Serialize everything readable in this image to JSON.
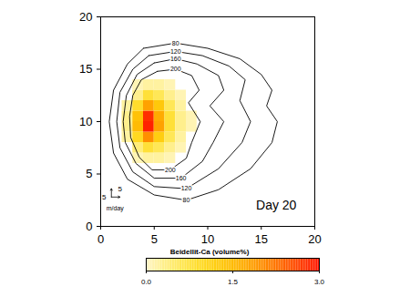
{
  "chart_data": {
    "type": "contour",
    "xlim": [
      0,
      20
    ],
    "ylim": [
      0,
      20
    ],
    "xticks": [
      0,
      5,
      10,
      15,
      20
    ],
    "yticks": [
      0,
      5,
      10,
      15,
      20
    ],
    "annotation": "Day 20",
    "scale_arrow": {
      "value": 5,
      "unit": "m/day"
    },
    "colorbar": {
      "title": "Beidellit-Ca (volume%)",
      "range": [
        0,
        3
      ],
      "ticks": [
        0,
        1.5,
        3
      ],
      "colors": [
        "#fff6c8",
        "#ffe000",
        "#ff9a00",
        "#ff1400"
      ]
    },
    "concentration": {
      "x_edges": [
        2,
        3,
        4,
        5,
        6,
        7,
        8,
        9
      ],
      "y_edges": [
        6,
        7,
        8,
        9,
        10,
        11,
        12,
        13,
        14
      ],
      "values": [
        [
          0,
          0.1,
          0.2,
          0.2,
          0.1,
          0,
          0
        ],
        [
          0,
          0.4,
          0.8,
          0.6,
          0.3,
          0.1,
          0
        ],
        [
          0.2,
          1.0,
          2.0,
          1.2,
          0.6,
          0.2,
          0
        ],
        [
          0.3,
          1.5,
          2.9,
          1.8,
          0.8,
          0.3,
          0.1
        ],
        [
          0.3,
          1.4,
          2.8,
          1.7,
          0.8,
          0.3,
          0.1
        ],
        [
          0.2,
          0.9,
          1.8,
          1.3,
          0.6,
          0.2,
          0
        ],
        [
          0,
          0.3,
          0.8,
          0.6,
          0.3,
          0.1,
          0
        ],
        [
          0,
          0.1,
          0.2,
          0.2,
          0.1,
          0,
          0
        ]
      ]
    },
    "contours": [
      {
        "level": 80,
        "points": [
          [
            4,
            17
          ],
          [
            7,
            17.5
          ],
          [
            10,
            17
          ],
          [
            13,
            16
          ],
          [
            15,
            14.5
          ],
          [
            16,
            13
          ],
          [
            15.5,
            11.5
          ],
          [
            16.5,
            10
          ],
          [
            16,
            8
          ],
          [
            14,
            5.5
          ],
          [
            11,
            3.5
          ],
          [
            8,
            2.5
          ],
          [
            5,
            3
          ],
          [
            2.5,
            4.5
          ],
          [
            1.2,
            7
          ],
          [
            0.8,
            10
          ],
          [
            1.2,
            13
          ],
          [
            2.5,
            15.5
          ],
          [
            4,
            17
          ]
        ]
      },
      {
        "level": 120,
        "points": [
          [
            4.5,
            16.3
          ],
          [
            7,
            16.7
          ],
          [
            9.5,
            16.3
          ],
          [
            12,
            15.3
          ],
          [
            13.5,
            14
          ],
          [
            13,
            12
          ],
          [
            14,
            10
          ],
          [
            13.2,
            8
          ],
          [
            11,
            5.5
          ],
          [
            8,
            3.6
          ],
          [
            5,
            3.8
          ],
          [
            3,
            5.2
          ],
          [
            1.8,
            7.5
          ],
          [
            1.5,
            10
          ],
          [
            1.8,
            12.8
          ],
          [
            3,
            15
          ],
          [
            4.5,
            16.3
          ]
        ]
      },
      {
        "level": 160,
        "points": [
          [
            5,
            15.6
          ],
          [
            7,
            16
          ],
          [
            9,
            15.5
          ],
          [
            11,
            14.4
          ],
          [
            11.5,
            13
          ],
          [
            10.2,
            11.5
          ],
          [
            11.5,
            10
          ],
          [
            10.5,
            8
          ],
          [
            9.5,
            6.2
          ],
          [
            7.5,
            4.6
          ],
          [
            5,
            4.6
          ],
          [
            3.3,
            6
          ],
          [
            2.3,
            8
          ],
          [
            2.1,
            10
          ],
          [
            2.4,
            12.5
          ],
          [
            3.4,
            14.5
          ],
          [
            5,
            15.6
          ]
        ]
      },
      {
        "level": 200,
        "points": [
          [
            5.3,
            14.8
          ],
          [
            7,
            15
          ],
          [
            8.5,
            14.4
          ],
          [
            9.2,
            13
          ],
          [
            8.2,
            11.8
          ],
          [
            9.3,
            10
          ],
          [
            8.5,
            8
          ],
          [
            8,
            6.5
          ],
          [
            6.5,
            5.4
          ],
          [
            4.8,
            5.4
          ],
          [
            3.6,
            6.6
          ],
          [
            2.8,
            8.5
          ],
          [
            2.7,
            10.5
          ],
          [
            3,
            12.5
          ],
          [
            3.8,
            14
          ],
          [
            5.3,
            14.8
          ]
        ]
      }
    ]
  }
}
